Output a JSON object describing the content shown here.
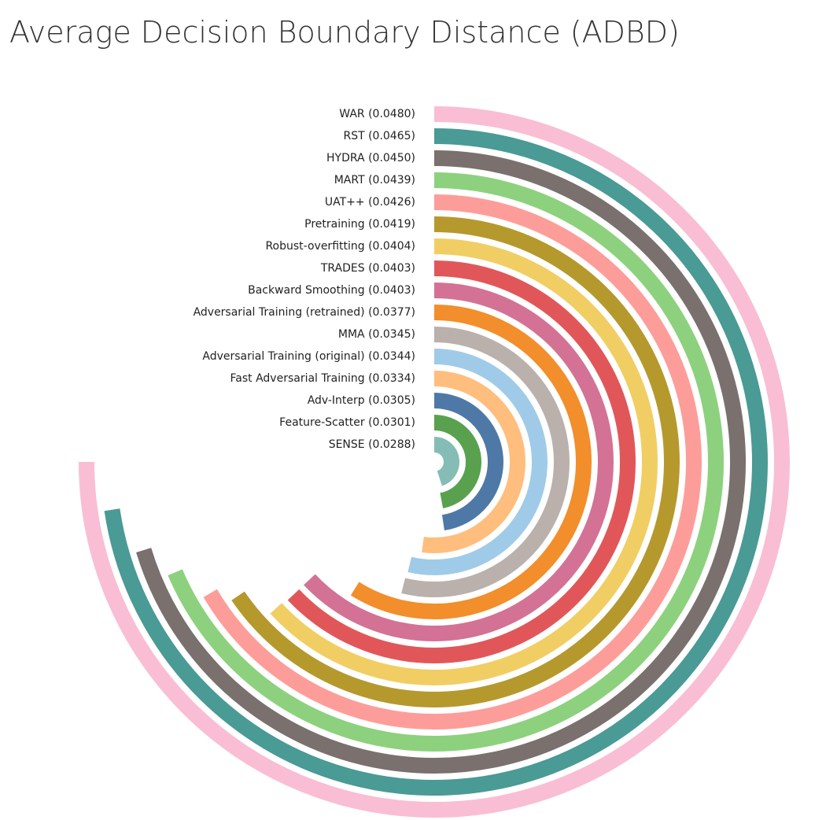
{
  "chart_data": {
    "type": "radial_bar",
    "title": "Average Decision Boundary Distance (ADBD)",
    "categories": [
      "WAR (0.0480)",
      "RST (0.0465)",
      "HYDRA (0.0450)",
      "MART (0.0439)",
      "UAT++ (0.0426)",
      "Pretraining (0.0419)",
      "Robust-overfitting (0.0404)",
      "TRADES (0.0403)",
      "Backward Smoothing (0.0403)",
      "Adversarial Training (retrained) (0.0377)",
      "MMA (0.0345)",
      "Adversarial Training (original) (0.0344)",
      "Fast Adversarial Training (0.0334)",
      "Adv-Interp (0.0305)",
      "Feature-Scatter (0.0301)",
      "SENSE (0.0288)"
    ],
    "values": [
      0.048,
      0.0465,
      0.045,
      0.0439,
      0.0426,
      0.0419,
      0.0404,
      0.0403,
      0.0403,
      0.0377,
      0.0345,
      0.0344,
      0.0334,
      0.0305,
      0.0301,
      0.0288
    ],
    "colors": [
      "#f9bed3",
      "#4a9a95",
      "#7a706e",
      "#8dd17e",
      "#fd9d9a",
      "#b5992d",
      "#f1ce63",
      "#e15759",
      "#d37295",
      "#f28e2b",
      "#bab0ac",
      "#a0cbe8",
      "#ffbe7d",
      "#4e79a7",
      "#59a14f",
      "#86bcb6"
    ],
    "thetalim": [
      0,
      0.064
    ]
  }
}
